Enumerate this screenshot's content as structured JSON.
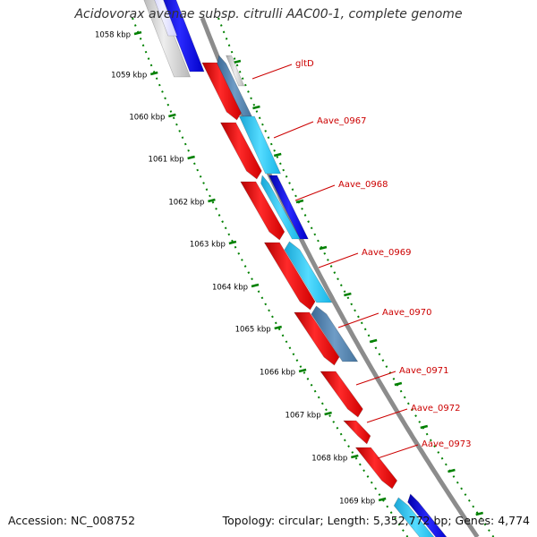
{
  "title": "Acidovorax avenae subsp. citrulli AAC00-1, complete genome",
  "footer": {
    "accession": "Accession: NC_008752",
    "topology": "Topology: circular; Length: 5,352,772 bp; Genes: 4,774"
  },
  "colors": {
    "forward_feature": "#ff0000",
    "reverse_cyan": "#22c8ff",
    "reverse_blue": "#0000ee",
    "reverse_steel": "#4a7aa6",
    "reverse_grey": "#c8c8c8",
    "backbone": "#8c8c8c",
    "ruler": "#008000",
    "gene_label": "#cc0000"
  },
  "ruler": {
    "ticks": [
      "1058 kbp",
      "1059 kbp",
      "1060 kbp",
      "1061 kbp",
      "1062 kbp",
      "1063 kbp",
      "1064 kbp",
      "1065 kbp",
      "1066 kbp",
      "1067 kbp",
      "1068 kbp",
      "1069 kbp"
    ]
  },
  "gene_labels": [
    "gltD",
    "Aave_0967",
    "Aave_0968",
    "Aave_0969",
    "Aave_0970",
    "Aave_0971",
    "Aave_0972",
    "Aave_0973"
  ]
}
